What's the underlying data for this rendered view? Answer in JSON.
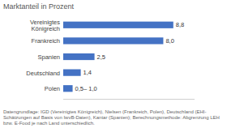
{
  "chart_data": {
    "type": "bar",
    "orientation": "horizontal",
    "title": "Marktanteil in Prozent",
    "categories": [
      "Polen",
      "Deutschland",
      "Spanien",
      "Frankreich",
      "Vereinigtes\nKönigreich"
    ],
    "values": [
      0.75,
      1.4,
      2.5,
      8.0,
      8.8
    ],
    "value_labels": [
      "0,5– 1,0",
      "1,4",
      "2,5",
      "8,0",
      "8,8"
    ],
    "data_labels": true,
    "color": "#4472C4",
    "xlim": [
      0,
      10.5
    ],
    "tick_labels": "y",
    "grid": false,
    "footnote": "Datengrundlage: IGD (Vereinigtes Königreich), Nielsen (Frankreich, Polen), Deutschland (EHI-Schätzungen auf Basis von IwvB-Daten), Kantar (Spanien); Berechnungsmethode: Abgrenzung LEH bzw. E-Food je nach Land unterschiedlich."
  }
}
